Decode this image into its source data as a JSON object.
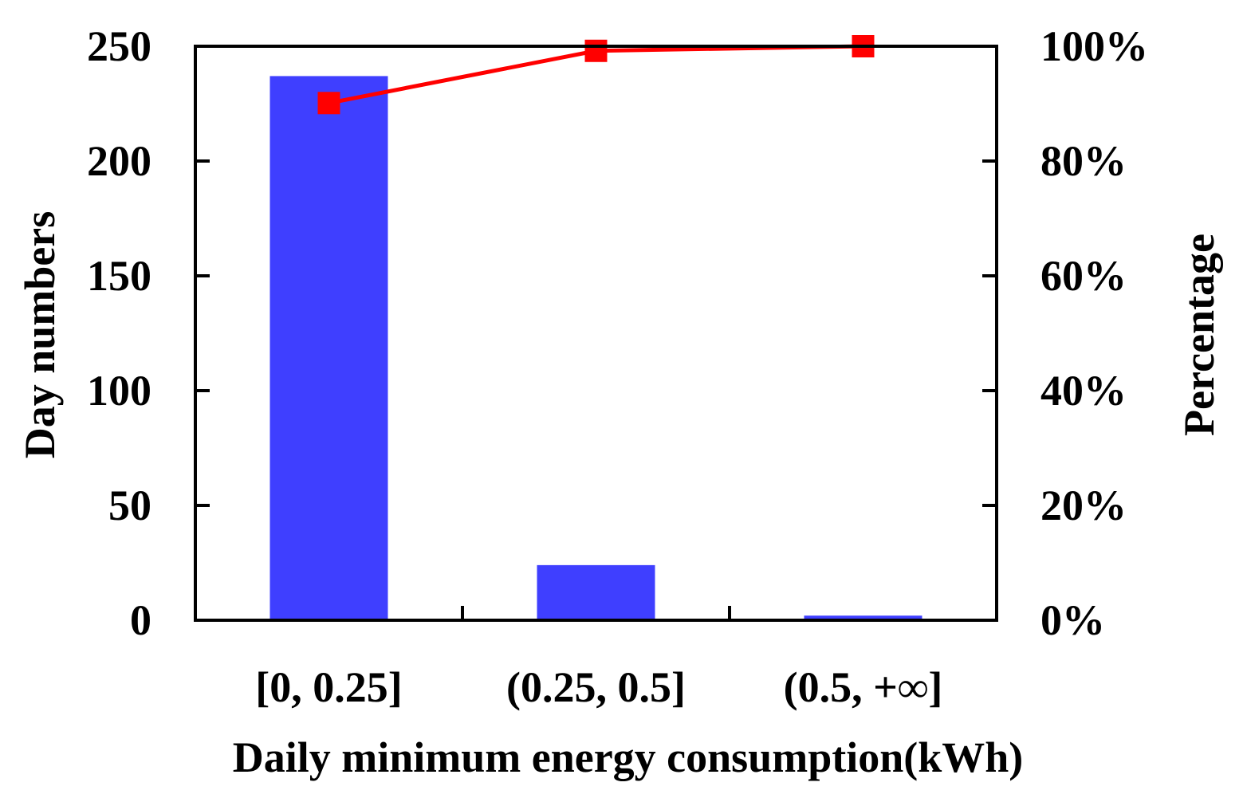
{
  "chart_data": {
    "type": "bar",
    "categories": [
      "[0, 0.25]",
      "(0.25, 0.5]",
      "(0.5, +∞]"
    ],
    "series": [
      {
        "name": "Day numbers",
        "kind": "bar",
        "axis": "left",
        "values": [
          237,
          24,
          2
        ],
        "color": "#3f3fff"
      },
      {
        "name": "Percentage",
        "kind": "line",
        "axis": "right",
        "values": [
          90.1,
          99.2,
          100.0
        ],
        "color": "#ff0000"
      }
    ],
    "xlabel": "Daily minimum energy consumption(kWh)",
    "ylabel": "Day numbers",
    "y2label": "Percentage",
    "ylim": [
      0,
      250
    ],
    "y2lim": [
      0,
      100
    ],
    "yticks": [
      0,
      50,
      100,
      150,
      200,
      250
    ],
    "yticklabels": [
      "0",
      "50",
      "100",
      "150",
      "200",
      "250"
    ],
    "y2ticks": [
      0,
      20,
      40,
      60,
      80,
      100
    ],
    "y2ticklabels": [
      "0%",
      "20%",
      "40%",
      "60%",
      "80%",
      "100%"
    ],
    "grid": false,
    "legend": "none"
  }
}
